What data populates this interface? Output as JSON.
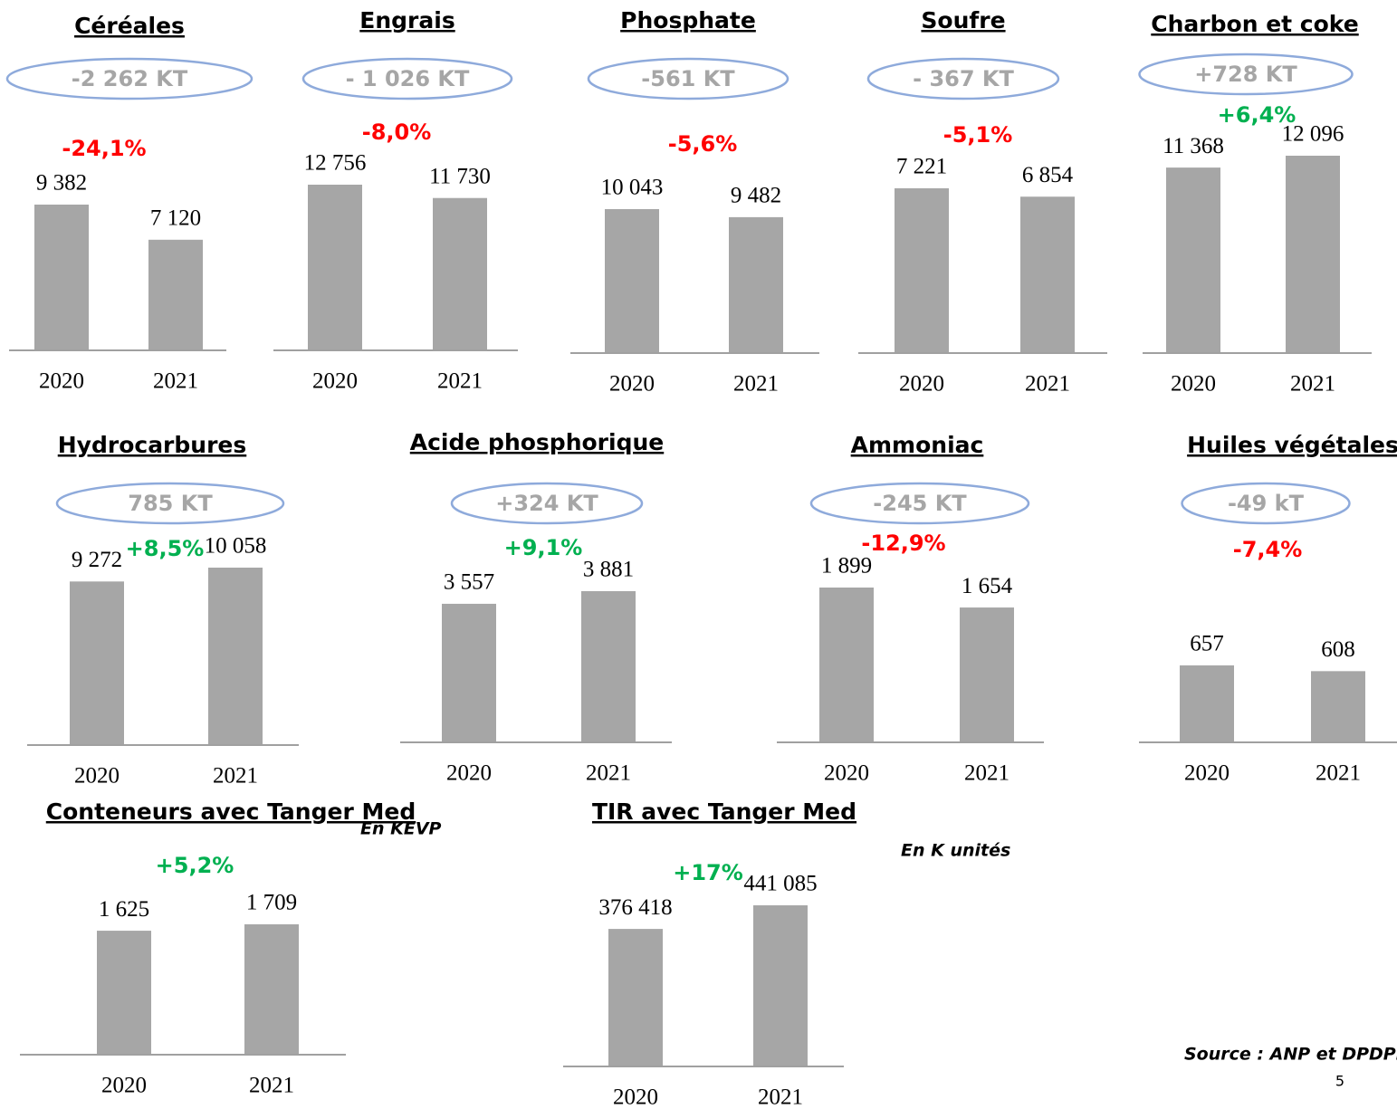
{
  "chart_data": [
    {
      "type": "bar",
      "title": "Céréales",
      "badge": "-2 262 KT",
      "change": "-24,1%",
      "change_color": "#ff0000",
      "categories": [
        "2020",
        "2021"
      ],
      "values": [
        9382,
        7120
      ],
      "value_labels": [
        "9 382",
        "7 120"
      ],
      "color": "#a6a6a6"
    },
    {
      "type": "bar",
      "title": "Engrais",
      "badge": "- 1 026 KT",
      "change": "-8,0%",
      "change_color": "#ff0000",
      "categories": [
        "2020",
        "2021"
      ],
      "values": [
        12756,
        11730
      ],
      "value_labels": [
        "12 756",
        "11 730"
      ],
      "color": "#a6a6a6"
    },
    {
      "type": "bar",
      "title": "Phosphate",
      "badge": "-561 KT",
      "change": "-5,6%",
      "change_color": "#ff0000",
      "categories": [
        "2020",
        "2021"
      ],
      "values": [
        10043,
        9482
      ],
      "value_labels": [
        "10 043",
        "9 482"
      ],
      "color": "#a6a6a6"
    },
    {
      "type": "bar",
      "title": "Soufre",
      "badge": "- 367 KT",
      "change": "-5,1%",
      "change_color": "#ff0000",
      "categories": [
        "2020",
        "2021"
      ],
      "values": [
        7221,
        6854
      ],
      "value_labels": [
        "7 221",
        "6 854"
      ],
      "color": "#a6a6a6"
    },
    {
      "type": "bar",
      "title": "Charbon et coke",
      "badge": "+728 KT",
      "change": "+6,4%",
      "change_color": "#00b050",
      "categories": [
        "2020",
        "2021"
      ],
      "values": [
        11368,
        12096
      ],
      "value_labels": [
        "11 368",
        "12 096"
      ],
      "color": "#a6a6a6"
    },
    {
      "type": "bar",
      "title": "Hydrocarbures",
      "badge": "785 KT",
      "change": "+8,5%",
      "change_color": "#00b050",
      "categories": [
        "2020",
        "2021"
      ],
      "values": [
        9272,
        10058
      ],
      "value_labels": [
        "9 272",
        "10 058"
      ],
      "color": "#a6a6a6"
    },
    {
      "type": "bar",
      "title": "Acide phosphorique",
      "badge": "+324 KT",
      "change": "+9,1%",
      "change_color": "#00b050",
      "categories": [
        "2020",
        "2021"
      ],
      "values": [
        3557,
        3881
      ],
      "value_labels": [
        "3 557",
        "3 881"
      ],
      "color": "#a6a6a6"
    },
    {
      "type": "bar",
      "title": "Ammoniac",
      "badge": "-245 KT",
      "change": "-12,9%",
      "change_color": "#ff0000",
      "categories": [
        "2020",
        "2021"
      ],
      "values": [
        1899,
        1654
      ],
      "value_labels": [
        "1 899",
        "1 654"
      ],
      "color": "#a6a6a6"
    },
    {
      "type": "bar",
      "title": "Huiles végétales",
      "badge": "-49 kT",
      "change": "-7,4%",
      "change_color": "#ff0000",
      "categories": [
        "2020",
        "2021"
      ],
      "values": [
        657,
        608
      ],
      "value_labels": [
        "657",
        "608"
      ],
      "color": "#a6a6a6"
    },
    {
      "type": "bar",
      "title": "Conteneurs avec Tanger Med",
      "unit_note": "En KEVP",
      "change": "+5,2%",
      "change_color": "#00b050",
      "categories": [
        "2020",
        "2021"
      ],
      "values": [
        1625,
        1709
      ],
      "value_labels": [
        "1 625",
        "1 709"
      ],
      "color": "#a6a6a6"
    },
    {
      "type": "bar",
      "title": "TIR avec Tanger Med",
      "unit_note": "En K unités",
      "change": "+17%",
      "change_color": "#00b050",
      "categories": [
        "2020",
        "2021"
      ],
      "values": [
        376418,
        441085
      ],
      "value_labels": [
        "376 418",
        "441 085"
      ],
      "color": "#a6a6a6"
    }
  ],
  "source": "Source : ANP et DPDPM",
  "page_number": "5"
}
